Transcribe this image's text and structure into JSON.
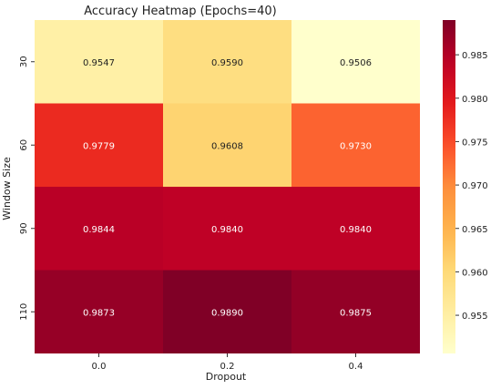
{
  "chart_data": {
    "type": "heatmap",
    "title": "Accuracy Heatmap (Epochs=40)",
    "xlabel": "Dropout",
    "ylabel": "Window Size",
    "x_categories": [
      "0.0",
      "0.2",
      "0.4"
    ],
    "y_categories": [
      "30",
      "60",
      "90",
      "110"
    ],
    "values": [
      [
        0.9547,
        0.959,
        0.9506
      ],
      [
        0.9779,
        0.9608,
        0.973
      ],
      [
        0.9844,
        0.984,
        0.984
      ],
      [
        0.9873,
        0.989,
        0.9875
      ]
    ],
    "value_labels": [
      [
        "0.9547",
        "0.9590",
        "0.9506"
      ],
      [
        "0.9779",
        "0.9608",
        "0.9730"
      ],
      [
        "0.9844",
        "0.9840",
        "0.9840"
      ],
      [
        "0.9873",
        "0.9890",
        "0.9875"
      ]
    ],
    "colormap": "YlOrRd",
    "colorbar": {
      "range": [
        0.9506,
        0.989
      ],
      "ticks": [
        0.955,
        0.96,
        0.965,
        0.97,
        0.975,
        0.98,
        0.985
      ],
      "tick_labels": [
        "0.955",
        "0.960",
        "0.965",
        "0.970",
        "0.975",
        "0.980",
        "0.985"
      ]
    }
  }
}
